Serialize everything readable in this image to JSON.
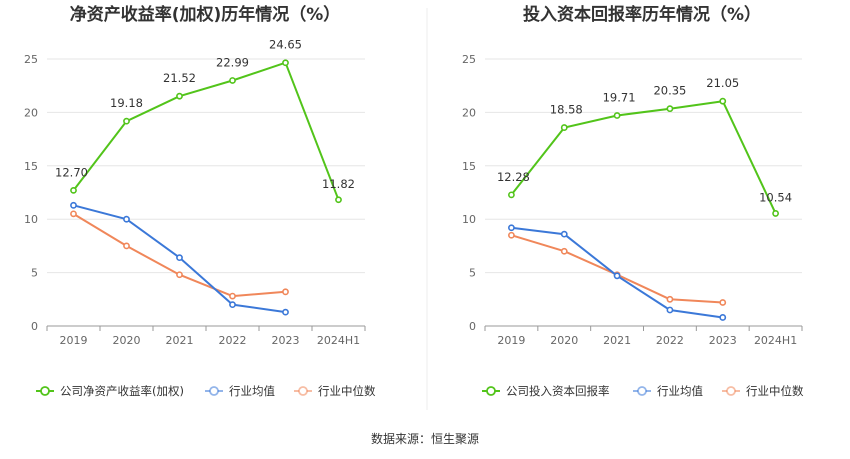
{
  "source_text": "数据来源：恒生聚源",
  "chart_data": [
    {
      "type": "line",
      "title": "净资产收益率(加权)历年情况（%）",
      "categories": [
        "2019",
        "2020",
        "2021",
        "2022",
        "2023",
        "2024H1"
      ],
      "ylim": [
        0,
        25
      ],
      "yticks": [
        0,
        5,
        10,
        15,
        20,
        25
      ],
      "grid": true,
      "legend_position": "bottom",
      "series": [
        {
          "name": "公司净资产收益率(加权)",
          "color": "#52c41a",
          "values": [
            12.7,
            19.18,
            21.52,
            22.99,
            24.65,
            11.82
          ],
          "labels": [
            "12.70",
            "19.18",
            "21.52",
            "22.99",
            "24.65",
            "11.82"
          ]
        },
        {
          "name": "行业均值",
          "color": "#3b78d8",
          "values": [
            11.3,
            10.0,
            6.4,
            2.0,
            1.3,
            null
          ]
        },
        {
          "name": "行业中位数",
          "color": "#f0875a",
          "values": [
            10.5,
            7.5,
            4.8,
            2.8,
            3.2,
            null
          ]
        }
      ]
    },
    {
      "type": "line",
      "title": "投入资本回报率历年情况（%）",
      "categories": [
        "2019",
        "2020",
        "2021",
        "2022",
        "2023",
        "2024H1"
      ],
      "ylim": [
        0,
        25
      ],
      "yticks": [
        0,
        5,
        10,
        15,
        20,
        25
      ],
      "grid": true,
      "legend_position": "bottom",
      "series": [
        {
          "name": "公司投入资本回报率",
          "color": "#52c41a",
          "values": [
            12.28,
            18.58,
            19.71,
            20.35,
            21.05,
            10.54
          ],
          "labels": [
            "12.28",
            "18.58",
            "19.71",
            "20.35",
            "21.05",
            "10.54"
          ]
        },
        {
          "name": "行业均值",
          "color": "#3b78d8",
          "values": [
            9.2,
            8.6,
            4.7,
            1.5,
            0.8,
            null
          ]
        },
        {
          "name": "行业中位数",
          "color": "#f0875a",
          "values": [
            8.5,
            7.0,
            4.8,
            2.5,
            2.2,
            null
          ]
        }
      ]
    }
  ]
}
